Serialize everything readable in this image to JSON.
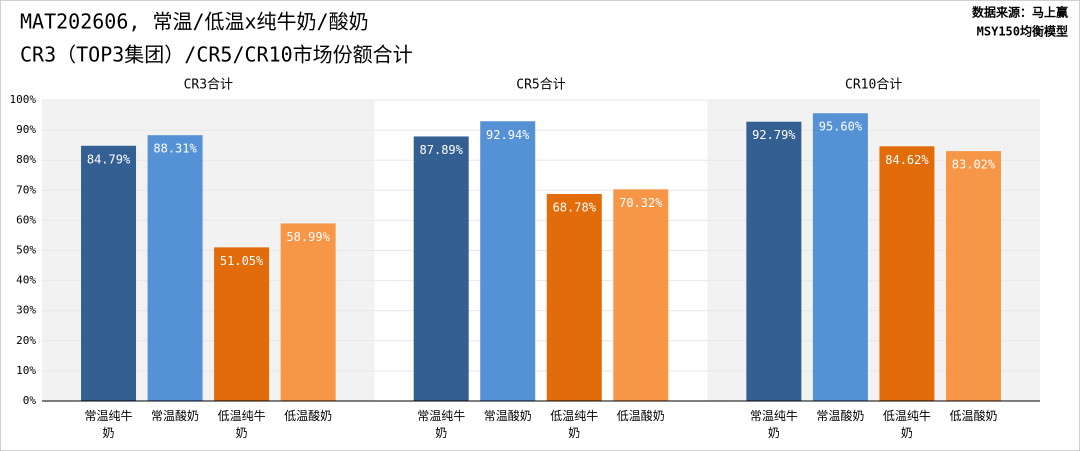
{
  "header": {
    "title": "MAT202606, 常温/低温x纯牛奶/酸奶",
    "subtitle": "CR3（TOP3集团）/CR5/CR10市场份额合计",
    "source": "数据来源：马上赢",
    "source_note": "MSY150均衡模型"
  },
  "chart_data": [
    {
      "type": "bar",
      "title": "CR3合计",
      "categories": [
        "常温纯牛奶",
        "常温酸奶",
        "低温纯牛奶",
        "低温酸奶"
      ],
      "values": [
        84.79,
        88.31,
        51.05,
        58.99
      ],
      "value_labels": [
        "84.79%",
        "88.31%",
        "51.05%",
        "58.99%"
      ],
      "colors": [
        "#345f92",
        "#5591d5",
        "#e36c0a",
        "#f79646"
      ],
      "background": "#f2f2f2",
      "ylim": [
        0,
        100
      ],
      "yticks": [
        {
          "value": 0,
          "label": "0%"
        },
        {
          "value": 10,
          "label": "10%"
        },
        {
          "value": 20,
          "label": "20%"
        },
        {
          "value": 30,
          "label": "30%"
        },
        {
          "value": 40,
          "label": "40%"
        },
        {
          "value": 50,
          "label": "50%"
        },
        {
          "value": 60,
          "label": "60%"
        },
        {
          "value": 70,
          "label": "70%"
        },
        {
          "value": 80,
          "label": "80%"
        },
        {
          "value": 90,
          "label": "90%"
        },
        {
          "value": 100,
          "label": "100%"
        }
      ],
      "grid": true
    },
    {
      "type": "bar",
      "title": "CR5合计",
      "categories": [
        "常温纯牛奶",
        "常温酸奶",
        "低温纯牛奶",
        "低温酸奶"
      ],
      "values": [
        87.89,
        92.94,
        68.78,
        70.32
      ],
      "value_labels": [
        "87.89%",
        "92.94%",
        "68.78%",
        "70.32%"
      ],
      "colors": [
        "#345f92",
        "#5591d5",
        "#e36c0a",
        "#f79646"
      ],
      "background": "#ffffff",
      "ylim": [
        0,
        100
      ],
      "yticks": [
        {
          "value": 0,
          "label": "0%"
        },
        {
          "value": 10,
          "label": "10%"
        },
        {
          "value": 20,
          "label": "20%"
        },
        {
          "value": 30,
          "label": "30%"
        },
        {
          "value": 40,
          "label": "40%"
        },
        {
          "value": 50,
          "label": "50%"
        },
        {
          "value": 60,
          "label": "60%"
        },
        {
          "value": 70,
          "label": "70%"
        },
        {
          "value": 80,
          "label": "80%"
        },
        {
          "value": 90,
          "label": "90%"
        },
        {
          "value": 100,
          "label": "100%"
        }
      ],
      "grid": true
    },
    {
      "type": "bar",
      "title": "CR10合计",
      "categories": [
        "常温纯牛奶",
        "常温酸奶",
        "低温纯牛奶",
        "低温酸奶"
      ],
      "values": [
        92.79,
        95.6,
        84.62,
        83.02
      ],
      "value_labels": [
        "92.79%",
        "95.60%",
        "84.62%",
        "83.02%"
      ],
      "colors": [
        "#345f92",
        "#5591d5",
        "#e36c0a",
        "#f79646"
      ],
      "background": "#f2f2f2",
      "ylim": [
        0,
        100
      ],
      "yticks": [
        {
          "value": 0,
          "label": "0%"
        },
        {
          "value": 10,
          "label": "10%"
        },
        {
          "value": 20,
          "label": "20%"
        },
        {
          "value": 30,
          "label": "30%"
        },
        {
          "value": 40,
          "label": "40%"
        },
        {
          "value": 50,
          "label": "50%"
        },
        {
          "value": 60,
          "label": "60%"
        },
        {
          "value": 70,
          "label": "70%"
        },
        {
          "value": 80,
          "label": "80%"
        },
        {
          "value": 90,
          "label": "90%"
        },
        {
          "value": 100,
          "label": "100%"
        }
      ],
      "grid": true
    }
  ]
}
